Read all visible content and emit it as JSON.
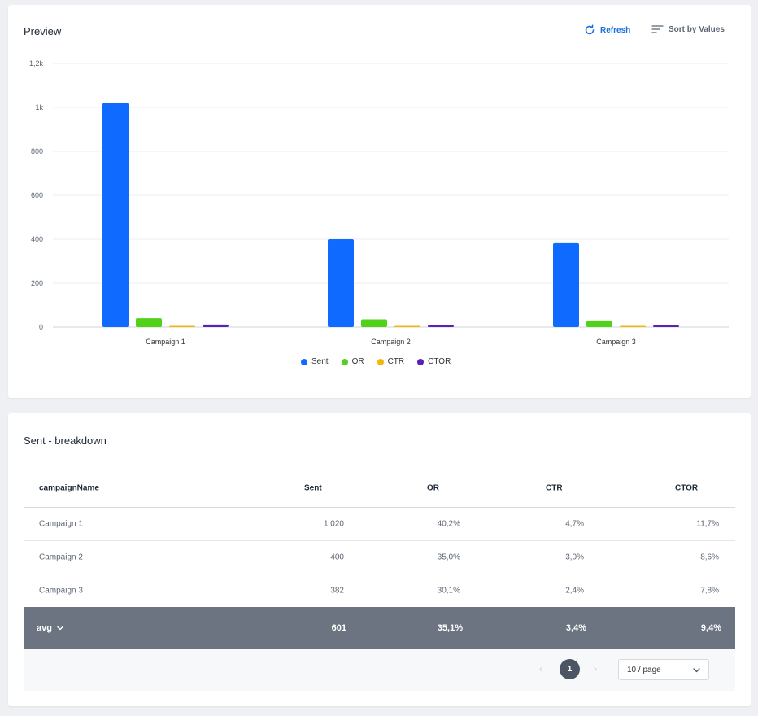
{
  "preview": {
    "title": "Preview",
    "refresh_label": "Refresh",
    "sort_label": "Sort by Values"
  },
  "chart_data": {
    "type": "bar",
    "categories": [
      "Campaign 1",
      "Campaign 2",
      "Campaign 3"
    ],
    "series": [
      {
        "name": "Sent",
        "color": "#0f6bff",
        "values": [
          1020,
          400,
          382
        ]
      },
      {
        "name": "OR",
        "color": "#52d11a",
        "values": [
          40.2,
          35.0,
          30.1
        ]
      },
      {
        "name": "CTR",
        "color": "#f2b705",
        "values": [
          4.7,
          3.0,
          2.4
        ]
      },
      {
        "name": "CTOR",
        "color": "#5b21b6",
        "values": [
          11.7,
          8.6,
          7.8
        ]
      }
    ],
    "ylim": [
      0,
      1200
    ],
    "yticks": [
      {
        "value": 0,
        "label": "0"
      },
      {
        "value": 200,
        "label": "200"
      },
      {
        "value": 400,
        "label": "400"
      },
      {
        "value": 600,
        "label": "600"
      },
      {
        "value": 800,
        "label": "800"
      },
      {
        "value": 1000,
        "label": "1k"
      },
      {
        "value": 1200,
        "label": "1,2k"
      }
    ],
    "grid": true,
    "legend_position": "bottom-center"
  },
  "breakdown": {
    "title": "Sent - breakdown",
    "headers": {
      "name": "campaignName",
      "sent": "Sent",
      "or": "OR",
      "ctr": "CTR",
      "ctor": "CTOR"
    },
    "rows": [
      {
        "name": "Campaign 1",
        "sent": "1 020",
        "or": "40,2%",
        "ctr": "4,7%",
        "ctor": "11,7%"
      },
      {
        "name": "Campaign 2",
        "sent": "400",
        "or": "35,0%",
        "ctr": "3,0%",
        "ctor": "8,6%"
      },
      {
        "name": "Campaign 3",
        "sent": "382",
        "or": "30,1%",
        "ctr": "2,4%",
        "ctor": "7,8%"
      }
    ],
    "avg": {
      "label": "avg",
      "sent": "601",
      "or": "35,1%",
      "ctr": "3,4%",
      "ctor": "9,4%"
    }
  },
  "pagination": {
    "current_page": "1",
    "page_size": "10 / page"
  },
  "colors": {
    "accent": "#1a6fe0",
    "footer_row": "#6b7480"
  }
}
